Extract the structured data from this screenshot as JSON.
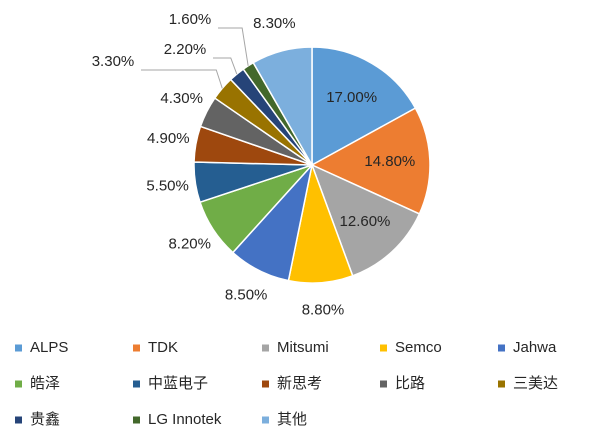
{
  "chart_data": {
    "type": "pie",
    "categories": [
      "ALPS",
      "TDK",
      "Mitsumi",
      "Semco",
      "Jahwa",
      "皓泽",
      "中蓝电子",
      "新思考",
      "比路",
      "三美达",
      "贵鑫",
      "LG Innotek",
      "其他"
    ],
    "values": [
      17.0,
      14.8,
      12.6,
      8.8,
      8.5,
      8.2,
      5.5,
      4.9,
      4.3,
      3.3,
      2.2,
      1.6,
      8.3
    ],
    "value_labels": [
      "17.00%",
      "14.80%",
      "12.60%",
      "8.80%",
      "8.50%",
      "8.20%",
      "5.50%",
      "4.90%",
      "4.30%",
      "3.30%",
      "2.20%",
      "1.60%",
      "8.30%"
    ],
    "colors": [
      "#5b9bd5",
      "#ed7d31",
      "#a5a5a5",
      "#ffc000",
      "#4472c4",
      "#70ad47",
      "#255e91",
      "#9e480e",
      "#636363",
      "#997300",
      "#264478",
      "#43682b",
      "#7cafdd"
    ],
    "legend": "bottom"
  }
}
